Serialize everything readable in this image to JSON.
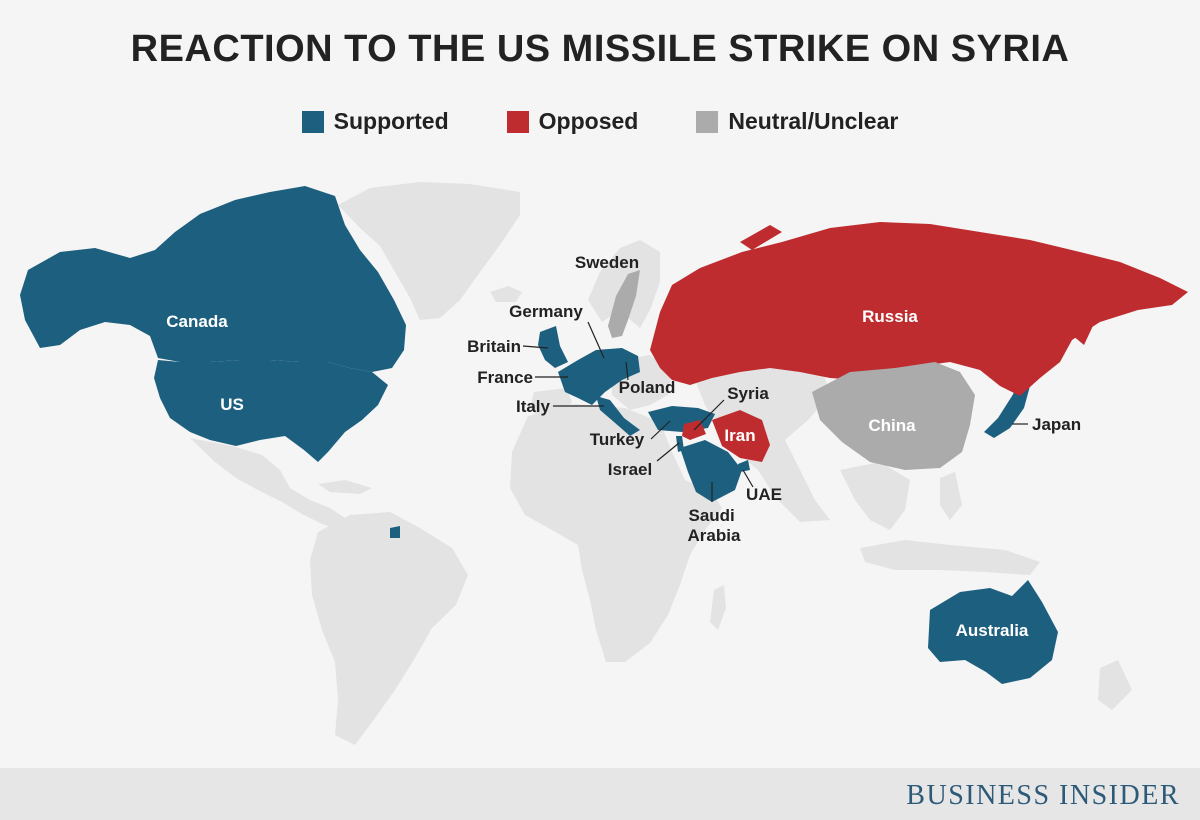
{
  "title": "REACTION TO THE US MISSILE STRIKE ON SYRIA",
  "legend": [
    {
      "label": "Supported",
      "color": "#1d5f7e"
    },
    {
      "label": "Opposed",
      "color": "#bf2c2f"
    },
    {
      "label": "Neutral/Unclear",
      "color": "#ababab"
    }
  ],
  "colors": {
    "supported": "#1d5f7e",
    "opposed": "#bf2c2f",
    "neutral": "#ababab",
    "other_land": "#e3e3e3",
    "label_dark": "#222222",
    "label_light": "#ffffff"
  },
  "countries": [
    {
      "name": "Canada",
      "stance": "supported"
    },
    {
      "name": "US",
      "stance": "supported"
    },
    {
      "name": "Britain",
      "stance": "supported"
    },
    {
      "name": "France",
      "stance": "supported"
    },
    {
      "name": "Germany",
      "stance": "supported"
    },
    {
      "name": "Italy",
      "stance": "supported"
    },
    {
      "name": "Poland",
      "stance": "supported"
    },
    {
      "name": "Turkey",
      "stance": "supported"
    },
    {
      "name": "Israel",
      "stance": "supported"
    },
    {
      "name": "Saudi Arabia",
      "stance": "supported"
    },
    {
      "name": "UAE",
      "stance": "supported"
    },
    {
      "name": "Japan",
      "stance": "supported"
    },
    {
      "name": "Australia",
      "stance": "supported"
    },
    {
      "name": "Russia",
      "stance": "opposed"
    },
    {
      "name": "Syria",
      "stance": "opposed"
    },
    {
      "name": "Iran",
      "stance": "opposed"
    },
    {
      "name": "Sweden",
      "stance": "neutral"
    },
    {
      "name": "China",
      "stance": "neutral"
    }
  ],
  "brand": "BUSINESS INSIDER"
}
